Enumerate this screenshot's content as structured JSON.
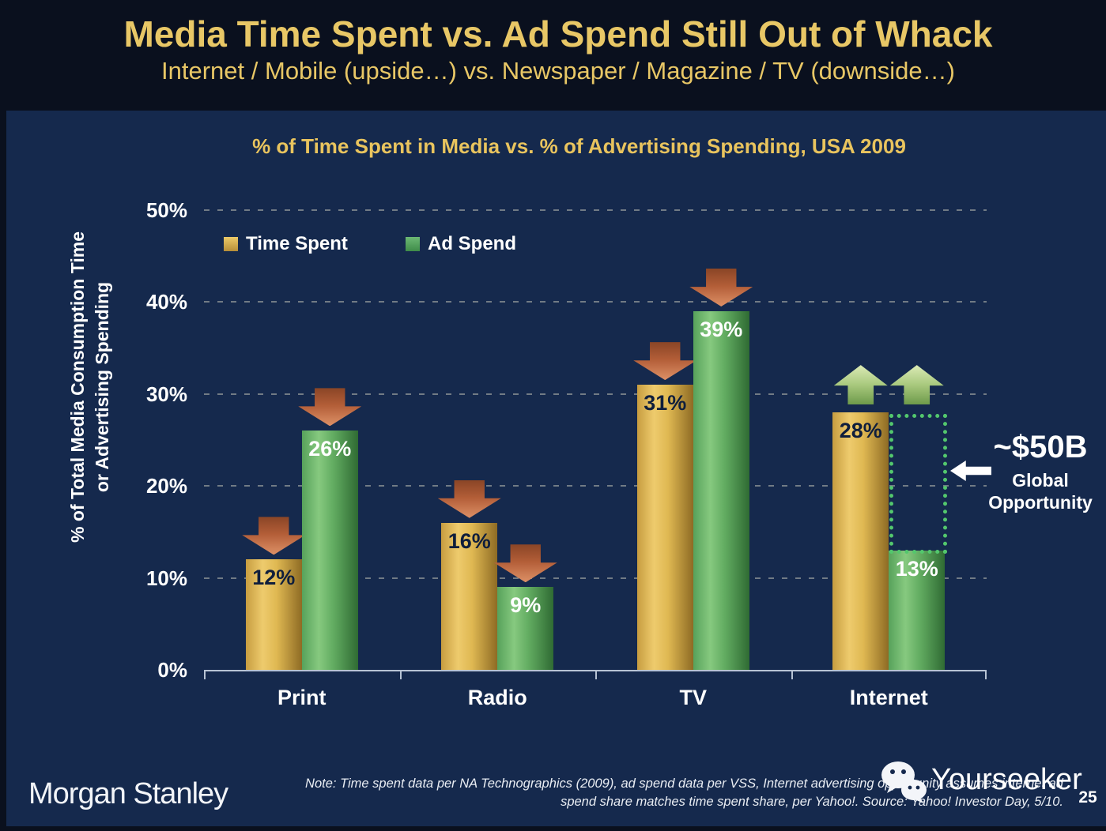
{
  "slide": {
    "title": "Media Time Spent vs. Ad Spend Still Out of Whack",
    "subtitle": "Internet / Mobile (upside…) vs. Newspaper / Magazine / TV (downside…)",
    "page_number": "25"
  },
  "colors": {
    "header_background": "#0a101e",
    "slide_background": "#15294d",
    "title_gold": "#e8c766",
    "bar_gold": "#d9ae4a",
    "bar_green": "#55a25c",
    "down_arrow": "#b25d37",
    "up_arrow": "#a9c97e",
    "opportunity_outline_green": "#53c76d",
    "axis": "#b7c3d4",
    "text_white": "#ffffff"
  },
  "chart_data": {
    "type": "bar",
    "title": "% of Time Spent in Media vs. % of Advertising Spending, USA 2009",
    "ylabel_line1": "% of Total Media Consumption Time",
    "ylabel_line2": "or Advertising Spending",
    "categories": [
      "Print",
      "Radio",
      "TV",
      "Internet"
    ],
    "series": [
      {
        "name": "Time Spent",
        "color": "#d9ae4a",
        "values": [
          12,
          16,
          31,
          28
        ]
      },
      {
        "name": "Ad Spend",
        "color": "#55a25c",
        "values": [
          26,
          9,
          39,
          13
        ]
      }
    ],
    "ylim": [
      0,
      50
    ],
    "yticks": [
      "0%",
      "10%",
      "20%",
      "30%",
      "40%",
      "50%"
    ],
    "grid": "dotted horizontal gridlines at each 10%",
    "legend_position": "top-left inside plot",
    "trend_arrows": [
      [
        "down",
        "down"
      ],
      [
        "down",
        "down"
      ],
      [
        "down",
        "down"
      ],
      [
        "up",
        "up"
      ]
    ],
    "annotation": {
      "value": "~$50B",
      "label": "Global Opportunity",
      "target_category": "Internet",
      "meaning": "dotted outline marks gap between Internet time spent (28%) and Internet ad spend (13%)"
    }
  },
  "footer": {
    "brand": "Morgan Stanley",
    "note_line1": "Note: Time spent data per NA Technographics (2009), ad spend data per VSS, Internet advertising opportunity assumes internet ad",
    "note_line2": "spend share matches time spent share, per Yahoo!. Source: Yahoo! Investor Day, 5/10.",
    "watermark": {
      "icon": "wechat-icon",
      "text": "Yourseeker"
    }
  }
}
